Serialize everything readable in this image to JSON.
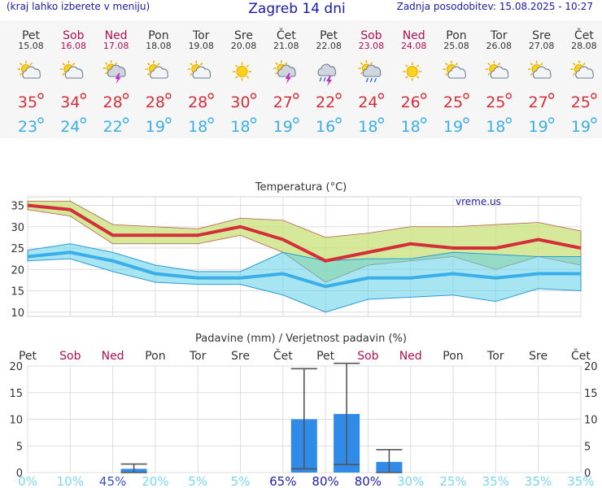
{
  "header": {
    "hint": "(kraj lahko izberete v meniju)",
    "title": "Zagreb 14 dni",
    "updated": "Zadnja posodobitev: 15.08.2025 - 10:27"
  },
  "colors": {
    "weekday": "#333333",
    "weekend": "#b0104e",
    "tmax": "#d32f3a",
    "tmin": "#3aaee8",
    "precip_bar": "#2f8ae8",
    "prob_low": "#7ad6f2",
    "prob_high": "#1f1faa"
  },
  "days": [
    {
      "name": "Pet",
      "date": "15.08",
      "weekend": false,
      "icon": "sun-cloud-icon",
      "tmax": "35",
      "tmin": "23"
    },
    {
      "name": "Sob",
      "date": "16.08",
      "weekend": true,
      "icon": "sun-cloud-icon",
      "tmax": "34",
      "tmin": "24"
    },
    {
      "name": "Ned",
      "date": "17.08",
      "weekend": true,
      "icon": "sun-cloud-storm-icon",
      "tmax": "28",
      "tmin": "22"
    },
    {
      "name": "Pon",
      "date": "18.08",
      "weekend": false,
      "icon": "sun-cloud-icon",
      "tmax": "28",
      "tmin": "19"
    },
    {
      "name": "Tor",
      "date": "19.08",
      "weekend": false,
      "icon": "sun-cloud-icon",
      "tmax": "28",
      "tmin": "18"
    },
    {
      "name": "Sre",
      "date": "20.08",
      "weekend": false,
      "icon": "sun-icon",
      "tmax": "30",
      "tmin": "18"
    },
    {
      "name": "Čet",
      "date": "21.08",
      "weekend": false,
      "icon": "sun-cloud-storm-icon",
      "tmax": "27",
      "tmin": "19"
    },
    {
      "name": "Pet",
      "date": "22.08",
      "weekend": false,
      "icon": "cloud-rain-storm-icon",
      "tmax": "22",
      "tmin": "16"
    },
    {
      "name": "Sob",
      "date": "23.08",
      "weekend": true,
      "icon": "sun-cloud-rain-icon",
      "tmax": "24",
      "tmin": "18"
    },
    {
      "name": "Ned",
      "date": "24.08",
      "weekend": true,
      "icon": "sun-icon",
      "tmax": "26",
      "tmin": "18"
    },
    {
      "name": "Pon",
      "date": "25.08",
      "weekend": false,
      "icon": "sun-cloud-icon",
      "tmax": "25",
      "tmin": "19"
    },
    {
      "name": "Tor",
      "date": "26.08",
      "weekend": false,
      "icon": "sun-cloud-icon",
      "tmax": "25",
      "tmin": "18"
    },
    {
      "name": "Sre",
      "date": "27.08",
      "weekend": false,
      "icon": "sun-cloud-icon",
      "tmax": "27",
      "tmin": "19"
    },
    {
      "name": "Čet",
      "date": "28.08",
      "weekend": false,
      "icon": "sun-cloud-icon",
      "tmax": "25",
      "tmin": "19"
    }
  ],
  "temp_chart": {
    "title": "Temperatura (°C)",
    "watermark": "vreme.us",
    "yticks": [
      10,
      15,
      20,
      25,
      30,
      35
    ]
  },
  "precip_chart": {
    "title": "Padavine (mm) / Verjetnost padavin (%)",
    "yticks": [
      0,
      5,
      10,
      15,
      20
    ]
  },
  "chart_data": [
    {
      "type": "line",
      "title": "Temperatura (°C)",
      "categories": [
        "15.08",
        "16.08",
        "17.08",
        "18.08",
        "19.08",
        "20.08",
        "21.08",
        "22.08",
        "23.08",
        "24.08",
        "25.08",
        "26.08",
        "27.08",
        "28.08"
      ],
      "ylim": [
        9,
        37
      ],
      "series": [
        {
          "values": [
            35,
            34,
            28,
            28,
            28,
            30,
            27,
            22,
            24,
            26,
            25,
            25,
            27,
            25
          ]
        },
        {
          "values": [
            36,
            36,
            30.5,
            30,
            29.5,
            32,
            31.5,
            27.5,
            28.5,
            30,
            30,
            30.5,
            31,
            29
          ]
        },
        {
          "values": [
            34,
            32.5,
            26,
            26,
            26,
            28,
            24,
            17,
            21,
            22,
            23,
            20,
            23,
            21
          ]
        },
        {
          "values": [
            23,
            24,
            22,
            19,
            18,
            18,
            19,
            16,
            18,
            18,
            19,
            18,
            19,
            19
          ]
        },
        {
          "values": [
            24.5,
            26,
            24,
            21,
            19.5,
            19.5,
            24,
            22,
            22.5,
            22.5,
            24,
            23.5,
            23,
            23
          ]
        },
        {
          "values": [
            22,
            22.5,
            19.5,
            17,
            16.5,
            16.5,
            14,
            10,
            13,
            13.5,
            14,
            12.5,
            15.5,
            15
          ]
        }
      ]
    },
    {
      "type": "bar",
      "title": "Padavine (mm) / Verjetnost padavin (%)",
      "categories": [
        "15.08",
        "16.08",
        "17.08",
        "18.08",
        "19.08",
        "20.08",
        "21.08",
        "22.08",
        "23.08",
        "24.08",
        "25.08",
        "26.08",
        "27.08",
        "28.08"
      ],
      "ylim": [
        0,
        20
      ],
      "series": [
        {
          "values": [
            0,
            0,
            0.7,
            0,
            0,
            0,
            10,
            11,
            2,
            0,
            0,
            0,
            0,
            0
          ]
        },
        {
          "values": [
            0,
            0,
            0,
            0,
            0,
            0,
            0.7,
            1.5,
            0,
            0,
            0,
            0,
            0,
            0
          ]
        },
        {
          "values": [
            0,
            0,
            1.6,
            0,
            0,
            0,
            19.5,
            20.5,
            4.3,
            0,
            0,
            0,
            0,
            0
          ]
        }
      ],
      "probabilities": [
        "0%",
        "10%",
        "45%",
        "20%",
        "5%",
        "5%",
        "65%",
        "80%",
        "80%",
        "30%",
        "25%",
        "35%",
        "35%",
        "35%"
      ]
    }
  ]
}
